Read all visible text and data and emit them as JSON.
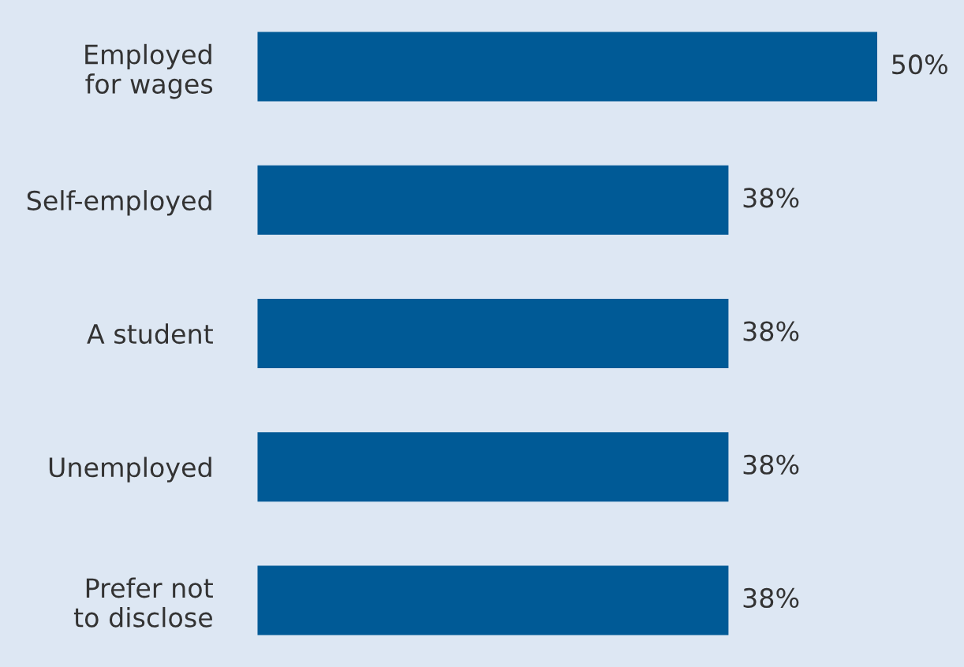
{
  "chart_data": {
    "type": "bar",
    "orientation": "horizontal",
    "categories": [
      "Employed\nfor wages",
      "Self-employed",
      "A student",
      "Unemployed",
      "Prefer not\nto disclose"
    ],
    "values": [
      50,
      38,
      38,
      38,
      38
    ],
    "value_labels": [
      "50%",
      "38%",
      "38%",
      "38%",
      "38%"
    ],
    "color": "#005a96",
    "grid": false,
    "legend": false
  }
}
